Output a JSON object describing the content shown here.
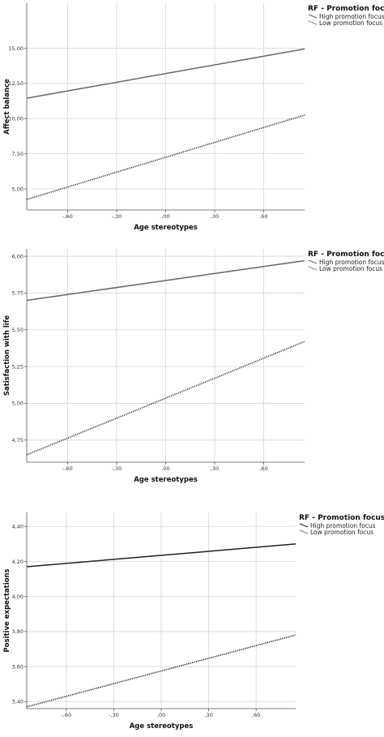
{
  "chart_data": [
    {
      "type": "line",
      "xlabel": "Age stereotypes",
      "ylabel": "Affect balance",
      "xlim": [
        -0.85,
        0.85
      ],
      "ylim": [
        3.5,
        18.2
      ],
      "x_ticks": [
        -0.6,
        -0.3,
        0.0,
        0.3,
        0.6
      ],
      "x_tick_labels": [
        "-,60",
        "-,30",
        ",00",
        ",30",
        ",60"
      ],
      "y_ticks": [
        5.0,
        7.5,
        10.0,
        12.5,
        15.0
      ],
      "y_tick_labels": [
        "5,00",
        "7,50",
        "10,00",
        "12,50",
        "15,00"
      ],
      "grid": true,
      "legend": {
        "title": "RF - Promotion focus",
        "position": "top-right"
      },
      "series": [
        {
          "name": "High promotion focus",
          "style": "solid",
          "color": "#666666",
          "x": [
            -0.85,
            0.85
          ],
          "y": [
            11.45,
            14.95
          ]
        },
        {
          "name": "Low promotion focus",
          "style": "dotted",
          "color": "#333333",
          "x": [
            -0.85,
            0.85
          ],
          "y": [
            4.25,
            10.25
          ]
        }
      ]
    },
    {
      "type": "line",
      "xlabel": "Age stereotypes",
      "ylabel": "Satisfaction with life",
      "xlim": [
        -0.85,
        0.85
      ],
      "ylim": [
        4.6,
        6.05
      ],
      "x_ticks": [
        -0.6,
        -0.3,
        0.0,
        0.3,
        0.6
      ],
      "x_tick_labels": [
        "-,60",
        "-,30",
        ",00",
        ",30",
        ",60"
      ],
      "y_ticks": [
        4.75,
        5.0,
        5.25,
        5.5,
        5.75,
        6.0
      ],
      "y_tick_labels": [
        "4,75",
        "5,00",
        "5,25",
        "5,50",
        "5,75",
        "6,00"
      ],
      "grid": true,
      "legend": {
        "title": "RF - Promotion focus",
        "position": "top-right"
      },
      "series": [
        {
          "name": "High promotion focus",
          "style": "solid",
          "color": "#666666",
          "x": [
            -0.85,
            0.85
          ],
          "y": [
            5.7,
            5.97
          ]
        },
        {
          "name": "Low promotion focus",
          "style": "dotted",
          "color": "#333333",
          "x": [
            -0.85,
            0.85
          ],
          "y": [
            4.65,
            5.42
          ]
        }
      ]
    },
    {
      "type": "line",
      "xlabel": "Age stereotypes",
      "ylabel": "Positive expectations",
      "xlim": [
        -0.85,
        0.85
      ],
      "ylim": [
        3.36,
        4.48
      ],
      "x_ticks": [
        -0.6,
        -0.3,
        0.0,
        0.3,
        0.6
      ],
      "x_tick_labels": [
        "-,60",
        "-,30",
        ",00",
        ",30",
        ",60"
      ],
      "y_ticks": [
        3.4,
        3.6,
        3.8,
        4.0,
        4.2,
        4.4
      ],
      "y_tick_labels": [
        "3,40",
        "3,60",
        "3,80",
        "4,00",
        "4,20",
        "4,40"
      ],
      "grid": true,
      "legend": {
        "title": "RF - Promotion focus",
        "position": "top-right"
      },
      "series": [
        {
          "name": "High promotion focus",
          "style": "solid",
          "color": "#222222",
          "x": [
            -0.85,
            0.85
          ],
          "y": [
            4.17,
            4.3
          ]
        },
        {
          "name": "Low promotion focus",
          "style": "dotted",
          "color": "#222222",
          "x": [
            -0.85,
            0.85
          ],
          "y": [
            3.37,
            3.78
          ]
        }
      ]
    }
  ]
}
